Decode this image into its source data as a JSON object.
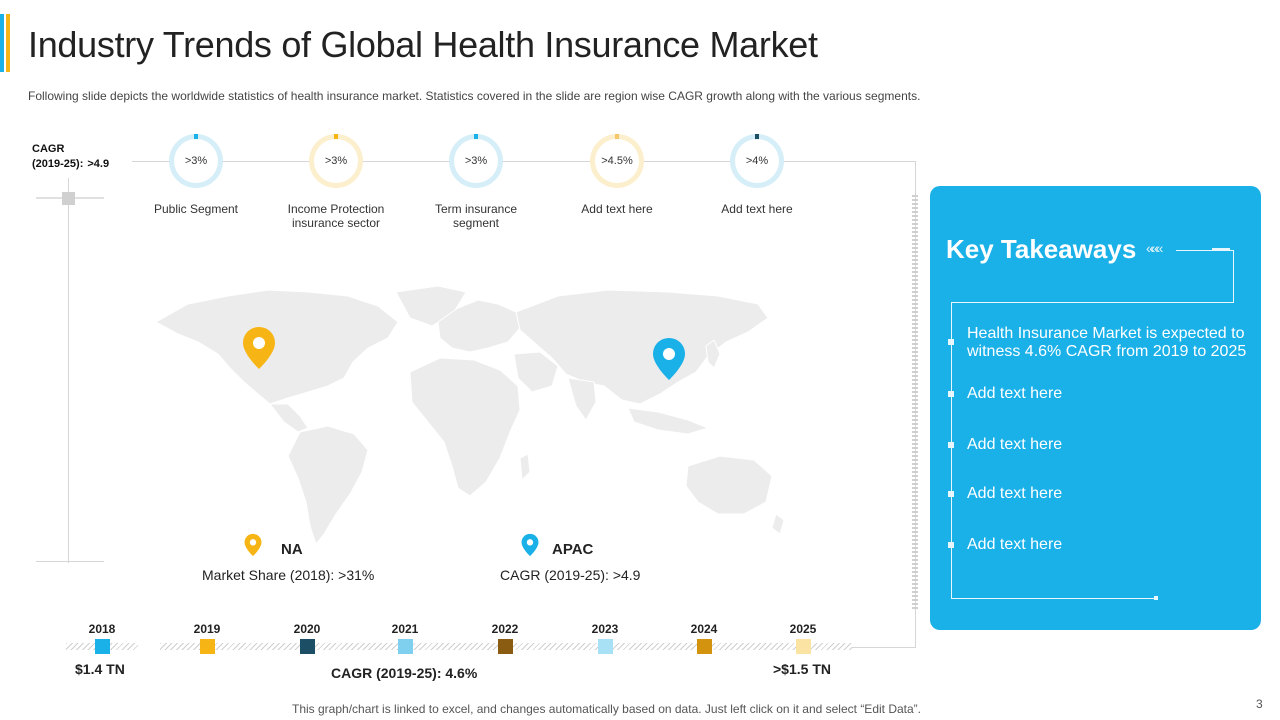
{
  "title": "Industry Trends of Global Health Insurance Market",
  "subtitle": "Following slide depicts the worldwide  statistics of health insurance market. Statistics covered  in the slide are region wise CAGR growth along with the various  segments.",
  "cagr_header": {
    "label_line1": "CAGR",
    "label_line2": "(2019-25):",
    "value": ">4.9"
  },
  "segments": [
    {
      "value": ">3%",
      "label": "Public Segment",
      "color": "#1ab0e8",
      "ring_color": "#d5eef8"
    },
    {
      "value": ">3%",
      "label": "Income Protection insurance sector",
      "color": "#f7b515",
      "ring_color": "#fcefcd"
    },
    {
      "value": ">3%",
      "label": "Term insurance segment",
      "color": "#1ab0e8",
      "ring_color": "#d5eef8"
    },
    {
      "value": ">4.5%",
      "label": "Add text here",
      "color": "#f7c76a",
      "ring_color": "#fcefcd"
    },
    {
      "value": ">4%",
      "label": "Add text here",
      "color": "#1c4f66",
      "ring_color": "#d5eef8"
    }
  ],
  "regions": [
    {
      "name": "NA",
      "stat": "Market Share (2018): >31%",
      "pin_color": "#f7b515"
    },
    {
      "name": "APAC",
      "stat": "CAGR (2019-25): >4.9",
      "pin_color": "#1ab0e8"
    }
  ],
  "timeline": {
    "years": [
      {
        "year": "2018",
        "color": "#1ab0e8"
      },
      {
        "year": "2019",
        "color": "#f7b515"
      },
      {
        "year": "2020",
        "color": "#1c4f66"
      },
      {
        "year": "2021",
        "color": "#7fd0ef"
      },
      {
        "year": "2022",
        "color": "#8a5c12"
      },
      {
        "year": "2023",
        "color": "#a8e0f5"
      },
      {
        "year": "2024",
        "color": "#d4930f"
      },
      {
        "year": "2025",
        "color": "#fbe3a4"
      }
    ],
    "start_value": "$1.4 TN",
    "cagr_text": "CAGR (2019-25): 4.6%",
    "end_value": ">$1.5 TN"
  },
  "key_takeaways": {
    "title": "Key Takeaways",
    "chevrons": "«««",
    "items": [
      "Health Insurance  Market is expected to witness 4.6% CAGR from 2019 to 2025",
      "Add text here",
      "Add text here",
      "Add text here",
      "Add text here"
    ]
  },
  "footer": "This graph/chart is linked to excel, and changes automatically based on data. Just left click on it and select “Edit Data”.",
  "page_number": "3",
  "colors": {
    "accent_blue": "#1ab0e8",
    "accent_yellow": "#f7b515",
    "map_gray": "#ececec"
  }
}
